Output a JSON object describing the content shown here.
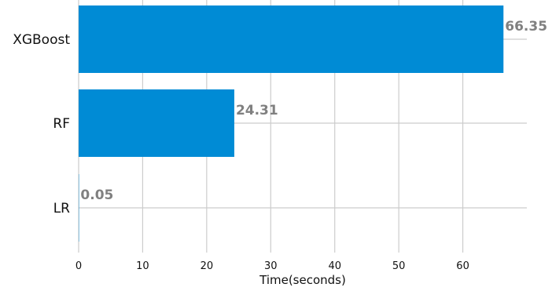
{
  "chart_data": {
    "type": "bar",
    "orientation": "horizontal",
    "categories": [
      "XGBoost",
      "RF",
      "LR"
    ],
    "values": [
      66.35,
      24.31,
      0.05
    ],
    "data_labels": [
      "66.35",
      "24.31",
      "0.05"
    ],
    "xlabel": "Time(seconds)",
    "ylabel": "",
    "xlim": [
      0,
      70
    ],
    "xticks": [
      0,
      10,
      20,
      30,
      40,
      50,
      60
    ],
    "xtick_labels": [
      "0",
      "10",
      "20",
      "30",
      "40",
      "50",
      "60"
    ],
    "grid": true,
    "bar_color": "#008bd5",
    "data_label_color": "#808080",
    "grid_color": "#cccccc"
  }
}
